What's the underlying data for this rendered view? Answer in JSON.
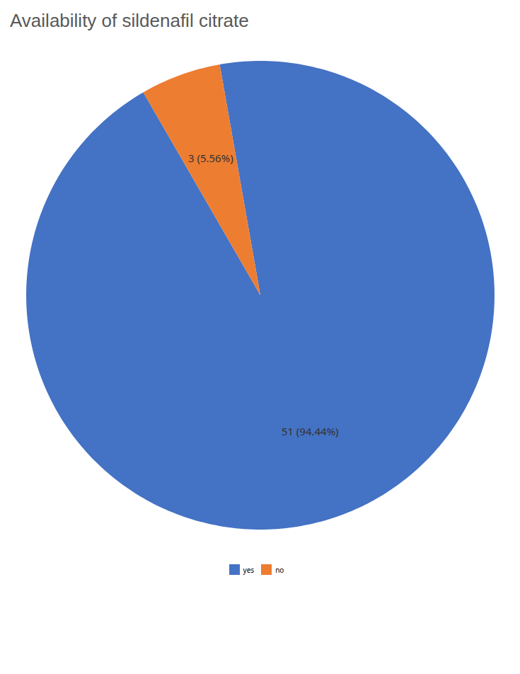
{
  "chart_data": {
    "type": "pie",
    "title": "Availability of sildenafil citrate",
    "categories": [
      "yes",
      "no"
    ],
    "values": [
      51,
      3
    ],
    "value_labels": [
      "51 (94.44%)",
      "3 (5.56%)"
    ],
    "colors": [
      "#4472C4",
      "#ED7D31"
    ],
    "data_labels": true,
    "legend": "bottom"
  }
}
